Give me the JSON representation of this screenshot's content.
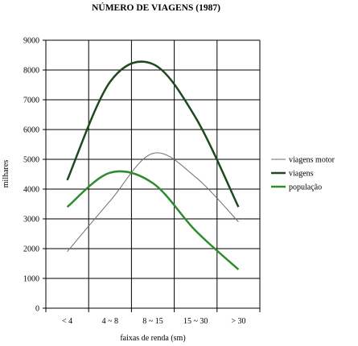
{
  "chart_data": {
    "type": "line",
    "title": "NÚMERO DE VIAGENS (1987)",
    "xlabel": "faixas de renda (sm)",
    "ylabel": "milhares",
    "categories": [
      "< 4",
      "4 ~ 8",
      "8 ~ 15",
      "15 ~ 30",
      "> 30"
    ],
    "ylim": [
      0,
      9000
    ],
    "yticks": [
      0,
      1000,
      2000,
      3000,
      4000,
      5000,
      6000,
      7000,
      8000,
      9000
    ],
    "grid": true,
    "legend_position": "right",
    "series": [
      {
        "name": "viagens motor",
        "values": [
          1900,
          3600,
          5200,
          4400,
          2900
        ],
        "color": "#6e6e6e"
      },
      {
        "name": "viagens",
        "values": [
          4300,
          7600,
          8200,
          6400,
          3400
        ],
        "color": "#1f4a1f"
      },
      {
        "name": "população",
        "values": [
          3400,
          4550,
          4200,
          2600,
          1300
        ],
        "color": "#2e8b2e"
      }
    ]
  }
}
